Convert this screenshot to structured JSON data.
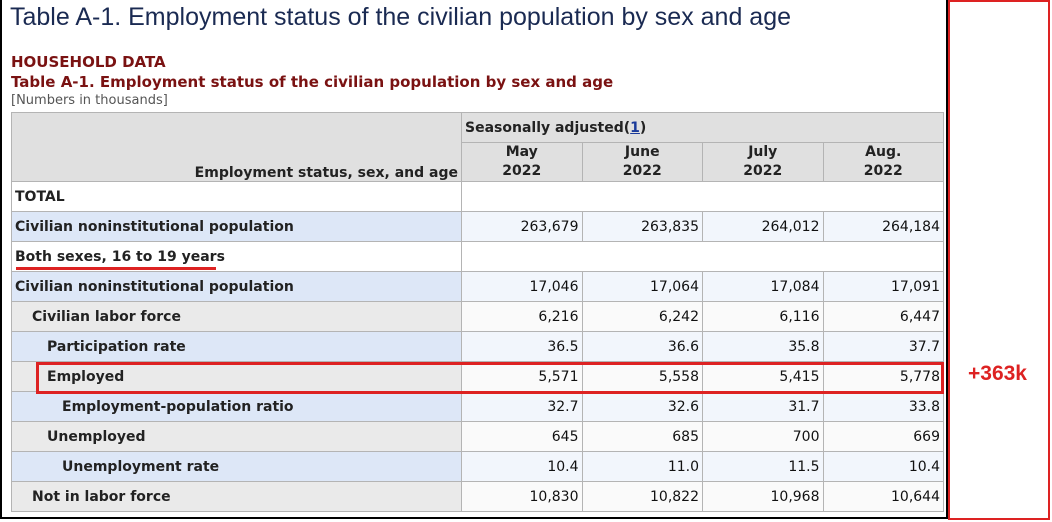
{
  "page": {
    "title": "Table A-1. Employment status of the civilian population by sex and age",
    "household_label": "HOUSEHOLD DATA",
    "table_title": "Table A-1. Employment status of the civilian population by sex and age",
    "units_note": "[Numbers in thousands]"
  },
  "table": {
    "stub_header": "Employment status, sex, and age",
    "group_header": "Seasonally adjusted",
    "footnote_ref": "1",
    "columns": [
      {
        "month": "May",
        "year": "2022"
      },
      {
        "month": "June",
        "year": "2022"
      },
      {
        "month": "July",
        "year": "2022"
      },
      {
        "month": "Aug.",
        "year": "2022"
      }
    ],
    "rows": [
      {
        "label": "TOTAL",
        "values": []
      },
      {
        "label": "Civilian noninstitutional population",
        "values": [
          "263,679",
          "263,835",
          "264,012",
          "264,184"
        ]
      },
      {
        "label": "Both sexes, 16 to 19 years",
        "values": []
      },
      {
        "label": "Civilian noninstitutional population",
        "values": [
          "17,046",
          "17,064",
          "17,084",
          "17,091"
        ]
      },
      {
        "label": "Civilian labor force",
        "values": [
          "6,216",
          "6,242",
          "6,116",
          "6,447"
        ]
      },
      {
        "label": "Participation rate",
        "values": [
          "36.5",
          "36.6",
          "35.8",
          "37.7"
        ]
      },
      {
        "label": "Employed",
        "values": [
          "5,571",
          "5,558",
          "5,415",
          "5,778"
        ]
      },
      {
        "label": "Employment-population ratio",
        "values": [
          "32.7",
          "32.6",
          "31.7",
          "33.8"
        ]
      },
      {
        "label": "Unemployed",
        "values": [
          "645",
          "685",
          "700",
          "669"
        ]
      },
      {
        "label": "Unemployment rate",
        "values": [
          "10.4",
          "11.0",
          "11.5",
          "10.4"
        ]
      },
      {
        "label": "Not in labor force",
        "values": [
          "10,830",
          "10,822",
          "10,968",
          "10,644"
        ]
      }
    ]
  },
  "annotation": {
    "text": "+363k",
    "color": "#dd2222"
  }
}
